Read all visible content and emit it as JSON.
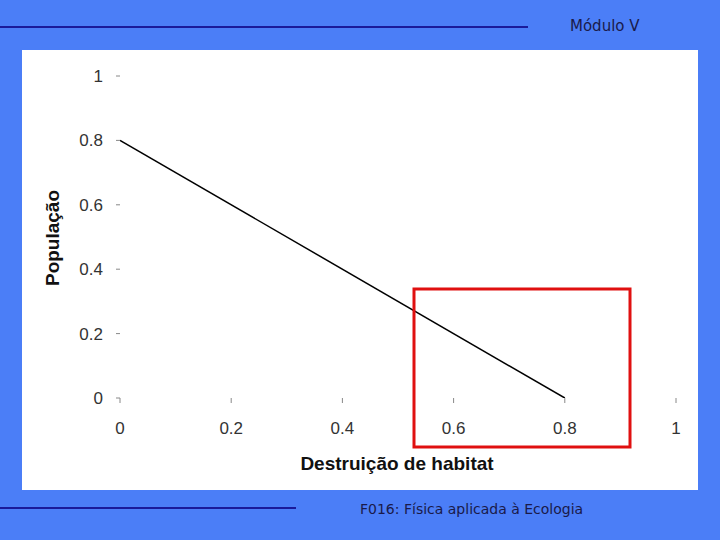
{
  "slide": {
    "header": "Módulo V",
    "footer": "F016: Física aplicada à Ecologia"
  },
  "chart_data": {
    "type": "line",
    "x_label": "Destruição de habitat",
    "y_label": "População",
    "x": [
      0,
      0.8
    ],
    "series": [
      {
        "name": "População",
        "color": "#000000",
        "values": [
          0.8,
          0
        ]
      }
    ],
    "xlim": [
      0,
      1
    ],
    "xticks": [
      0,
      0.2,
      0.4,
      0.6,
      0.8,
      1
    ],
    "ylim": [
      0,
      1
    ],
    "yticks": [
      0,
      0.2,
      0.4,
      0.6,
      0.8,
      1
    ],
    "grid": false
  }
}
